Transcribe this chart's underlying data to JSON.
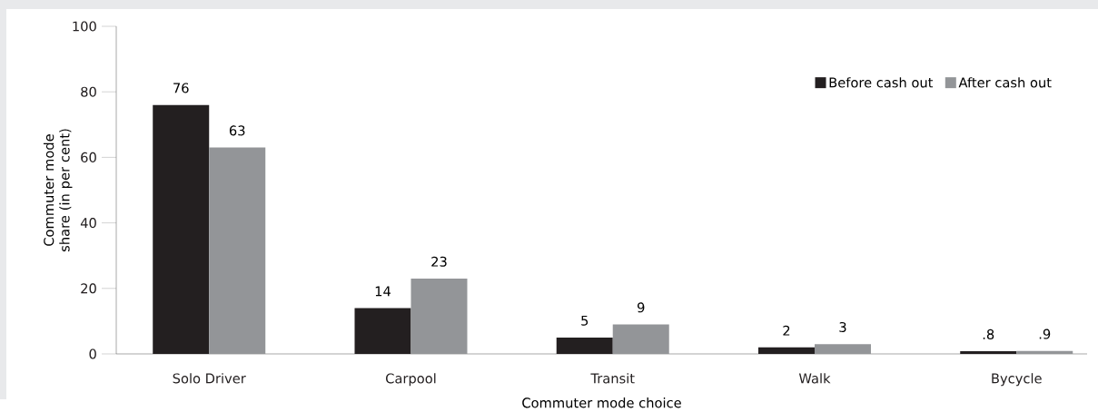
{
  "chart_data": {
    "type": "bar",
    "categories": [
      "Solo Driver",
      "Carpool",
      "Transit",
      "Walk",
      "Bycycle"
    ],
    "xlabel": "Commuter mode choice",
    "ylabel": "Commuter mode share (in per cent)",
    "ylim": [
      0,
      100
    ],
    "yticks": [
      0,
      20,
      40,
      60,
      80,
      100
    ],
    "legend": "top right",
    "series": [
      {
        "name": "Before cash out",
        "color": "#231f20",
        "values": [
          76,
          14,
          5,
          2,
          0.8
        ],
        "value_labels": [
          "76",
          "14",
          "5",
          "2",
          ".8"
        ]
      },
      {
        "name": "After cash out",
        "color": "#939598",
        "values": [
          63,
          23,
          9,
          3,
          0.9
        ],
        "value_labels": [
          "63",
          "23",
          "9",
          "3",
          ".9"
        ]
      }
    ]
  }
}
